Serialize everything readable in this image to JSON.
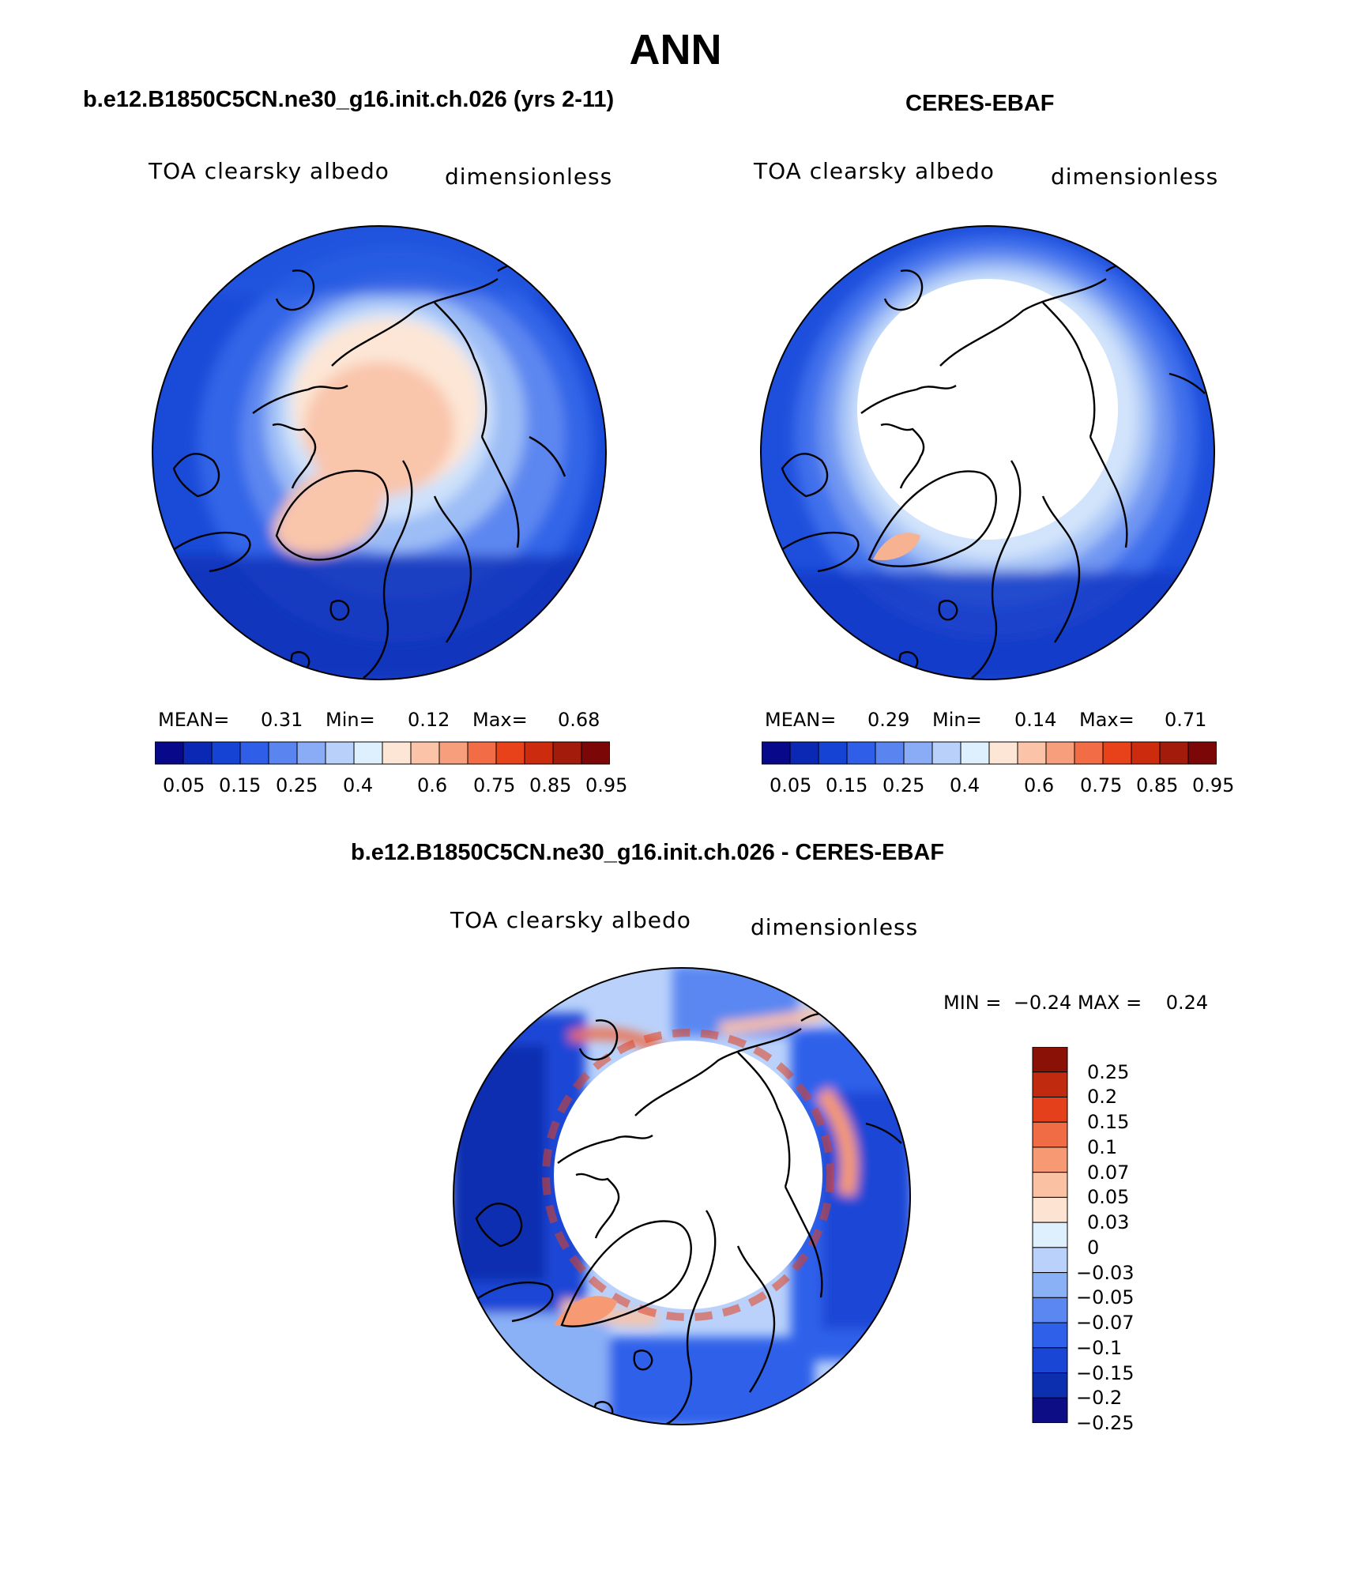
{
  "title": "ANN",
  "colors": {
    "scale12": [
      "#08088a",
      "#0b28b4",
      "#1543d4",
      "#2f5ee8",
      "#5a84f0",
      "#8aabf5",
      "#b8d0fa",
      "#def0fd",
      "#fde6d6",
      "#fbc3a7",
      "#f79f7c",
      "#f26c45",
      "#e74219",
      "#cc2b0e",
      "#a31b0a",
      "#7b0707"
    ],
    "diff": [
      "#0d0d85",
      "#0c2fb0",
      "#1a46d6",
      "#2f60ea",
      "#5a87f1",
      "#8ab0f6",
      "#bad2fb",
      "#def0fd",
      "#fde4d2",
      "#fbc1a3",
      "#f79a74",
      "#f06c44",
      "#e4401c",
      "#c02a0e",
      "#8a1106"
    ]
  },
  "panels": [
    {
      "title": "b.e12.B1850C5CN.ne30_g16.init.ch.026 (yrs 2-11)",
      "variable": "TOA clearsky albedo",
      "units": "dimensionless",
      "mean_label": "MEAN=",
      "mean": "0.31",
      "min_label": "Min=",
      "min": "0.12",
      "max_label": "Max=",
      "max": "0.68",
      "colorbar_labels": [
        "0.05",
        "0.15",
        "0.25",
        "0.4",
        "0.6",
        "0.75",
        "0.85",
        "0.95"
      ]
    },
    {
      "title": "CERES-EBAF",
      "variable": "TOA clearsky albedo",
      "units": "dimensionless",
      "mean_label": "MEAN=",
      "mean": "0.29",
      "min_label": "Min=",
      "min": "0.14",
      "max_label": "Max=",
      "max": "0.71",
      "colorbar_labels": [
        "0.05",
        "0.15",
        "0.25",
        "0.4",
        "0.6",
        "0.75",
        "0.85",
        "0.95"
      ]
    },
    {
      "title": "b.e12.B1850C5CN.ne30_g16.init.ch.026 - CERES-EBAF",
      "variable": "TOA clearsky albedo",
      "units": "dimensionless",
      "minmax_text": "MIN =  −0.24 MAX =    0.24",
      "colorbar_labels": [
        "0.25",
        "0.2",
        "0.15",
        "0.1",
        "0.07",
        "0.05",
        "0.03",
        "0",
        "−0.03",
        "−0.05",
        "−0.07",
        "−0.1",
        "−0.15",
        "−0.2",
        "−0.25"
      ]
    }
  ]
}
